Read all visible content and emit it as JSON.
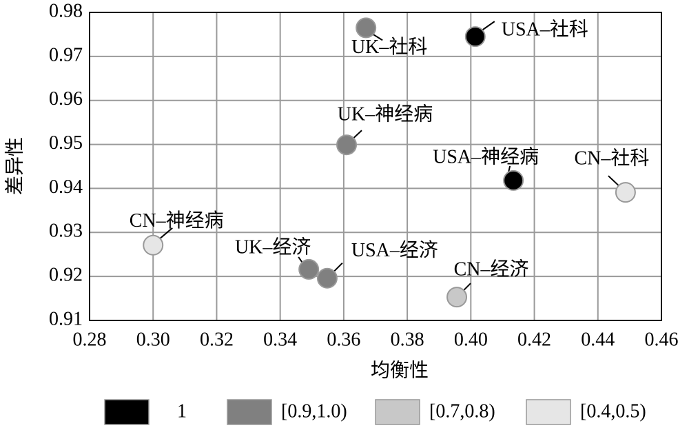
{
  "chart_data": {
    "type": "scatter",
    "x_label": "均衡性",
    "y_label": "差异性",
    "xlim": [
      0.28,
      0.46
    ],
    "xticks": [
      0.28,
      {
        "value": 0.3,
        "label": "0.30"
      },
      0.32,
      0.34,
      0.36,
      0.38,
      {
        "value": 0.4,
        "label": "0.40"
      },
      0.42,
      0.44,
      0.46
    ],
    "ylim": [
      0.91,
      0.98
    ],
    "yticks": [
      0.91,
      0.92,
      0.93,
      0.94,
      0.95,
      0.96,
      0.97,
      0.98
    ],
    "grid": true,
    "series": [
      {
        "name": "1",
        "color": "#000000",
        "labels": [
          "USA–社科",
          "USA–神经病"
        ],
        "x": [
          0.4014,
          0.4134
        ],
        "values": [
          0.9745,
          0.9418
        ]
      },
      {
        "name": "[0.9,1.0)",
        "color": "#808080",
        "labels": [
          "UK–社科",
          "UK–神经病",
          "UK–经济",
          "USA–经济"
        ],
        "x": [
          0.367,
          0.3609,
          0.349,
          0.3548
        ],
        "values": [
          0.9765,
          0.9499,
          0.9216,
          0.9196
        ]
      },
      {
        "name": "[0.7,0.8)",
        "color": "#c8c8c8",
        "labels": [
          "CN–经济"
        ],
        "x": [
          0.3956
        ],
        "values": [
          0.9153
        ]
      },
      {
        "name": "[0.4,0.5)",
        "color": "#e6e6e6",
        "labels": [
          "CN–社科",
          "CN–神经病"
        ],
        "x": [
          0.4487,
          0.3
        ],
        "values": [
          0.9391,
          0.9271
        ]
      }
    ]
  }
}
